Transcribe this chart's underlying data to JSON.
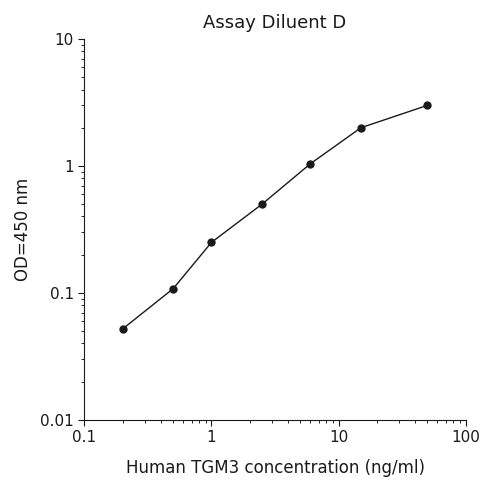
{
  "title": "Assay Diluent D",
  "xlabel": "Human TGM3 concentration (ng/ml)",
  "ylabel": "OD=450 nm",
  "x_values": [
    0.2,
    0.5,
    1.0,
    2.5,
    6.0,
    15.0,
    50.0
  ],
  "y_values": [
    0.052,
    0.108,
    0.25,
    0.5,
    1.04,
    2.0,
    3.0
  ],
  "xlim": [
    0.1,
    100
  ],
  "ylim": [
    0.01,
    10
  ],
  "line_color": "#1a1a1a",
  "marker": "o",
  "marker_size": 5,
  "marker_facecolor": "#1a1a1a",
  "marker_edgecolor": "#1a1a1a",
  "line_width": 1.0,
  "title_fontsize": 13,
  "label_fontsize": 12,
  "tick_fontsize": 11,
  "background_color": "#ffffff"
}
